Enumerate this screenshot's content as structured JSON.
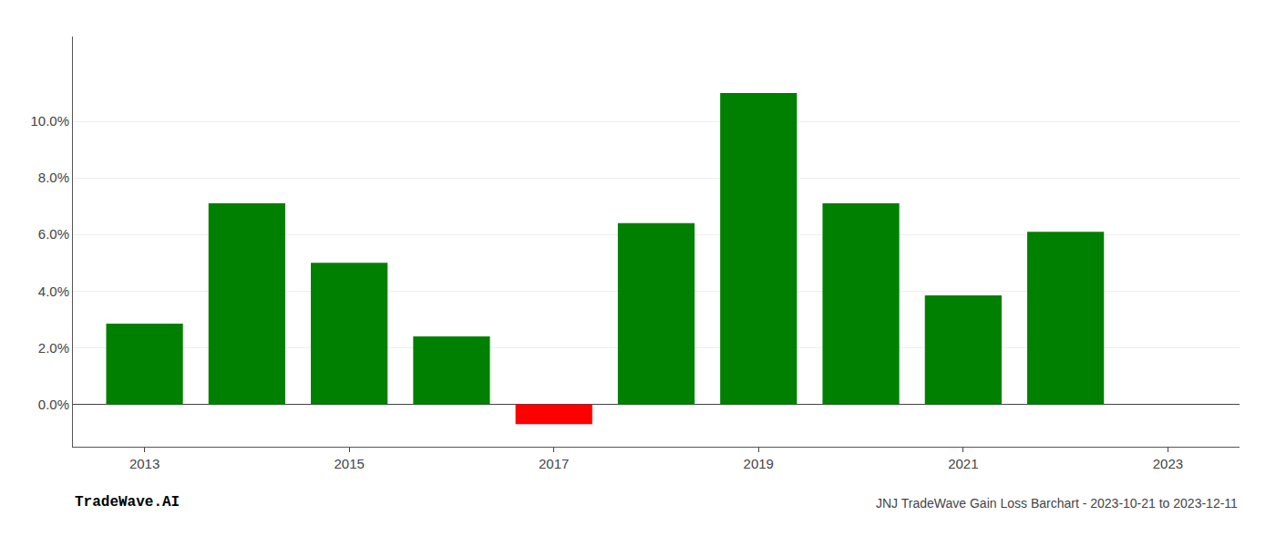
{
  "chart_data": {
    "type": "bar",
    "x": [
      2013,
      2014,
      2015,
      2016,
      2017,
      2018,
      2019,
      2020,
      2021,
      2022
    ],
    "values": [
      0.0285,
      0.071,
      0.05,
      0.024,
      -0.007,
      0.064,
      0.11,
      0.071,
      0.0385,
      0.061
    ],
    "colors": [
      "#008000",
      "#008000",
      "#008000",
      "#008000",
      "#ff0000",
      "#008000",
      "#008000",
      "#008000",
      "#008000",
      "#008000"
    ],
    "xlim": [
      2012.3,
      2023.7
    ],
    "xticks": [
      2013,
      2015,
      2017,
      2019,
      2021,
      2023
    ],
    "ylim": [
      -0.015,
      0.13
    ],
    "yticks": [
      {
        "value": 0.0,
        "label": "0.0%"
      },
      {
        "value": 0.02,
        "label": "2.0%"
      },
      {
        "value": 0.04,
        "label": "4.0%"
      },
      {
        "value": 0.06,
        "label": "6.0%"
      },
      {
        "value": 0.08,
        "label": "8.0%"
      },
      {
        "value": 0.1,
        "label": "10.0%"
      }
    ],
    "grid": true,
    "annotations": [
      {
        "text": "TradeWave.AI"
      },
      {
        "text": "JNJ TradeWave Gain Loss Barchart - 2023-10-21 to 2023-12-11"
      }
    ]
  }
}
